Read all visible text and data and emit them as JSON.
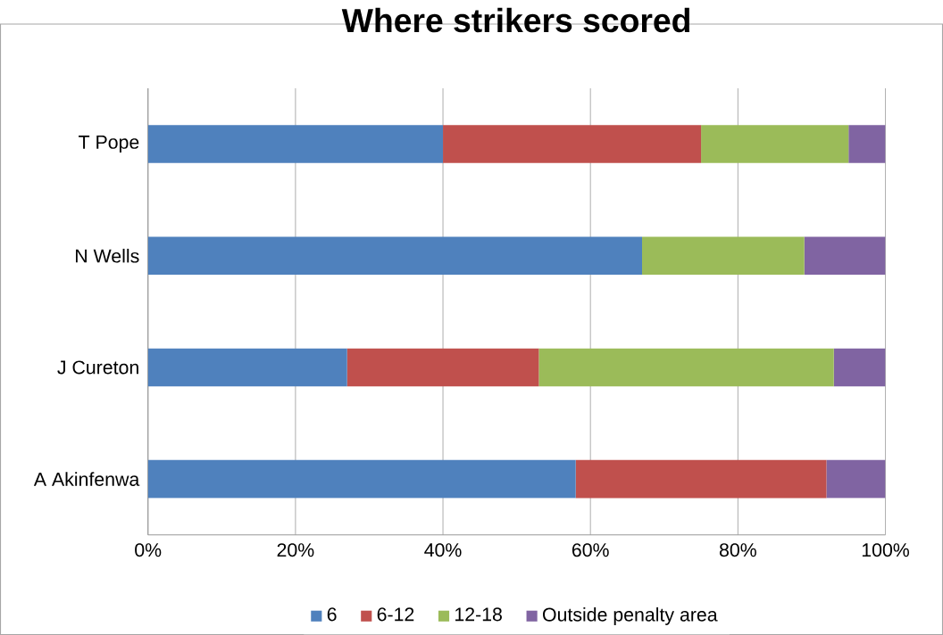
{
  "chart_data": {
    "type": "bar",
    "title": "Where strikers scored",
    "orientation": "horizontal",
    "stacked": true,
    "categories": [
      "T Pope",
      "N Wells",
      "J Cureton",
      "A Akinfenwa"
    ],
    "series": [
      {
        "name": "6",
        "color": "#4f81bd",
        "values": [
          40,
          67,
          27,
          58
        ]
      },
      {
        "name": "6-12",
        "color": "#c0504d",
        "values": [
          35,
          0,
          26,
          34
        ]
      },
      {
        "name": "12-18",
        "color": "#9bbb59",
        "values": [
          20,
          22,
          40,
          0
        ]
      },
      {
        "name": "Outside penalty area",
        "color": "#8064a2",
        "values": [
          5,
          11,
          7,
          8
        ]
      }
    ],
    "xlim": [
      0,
      100
    ],
    "xticks": [
      {
        "value": 0,
        "label": "0%"
      },
      {
        "value": 20,
        "label": "20%"
      },
      {
        "value": 40,
        "label": "40%"
      },
      {
        "value": 60,
        "label": "60%"
      },
      {
        "value": 80,
        "label": "80%"
      },
      {
        "value": 100,
        "label": "100%"
      }
    ],
    "grid": "x",
    "legend": "bottom"
  }
}
